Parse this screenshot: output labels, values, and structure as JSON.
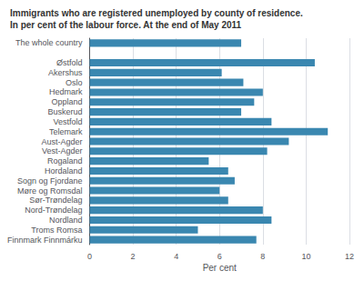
{
  "chart_data": {
    "type": "bar",
    "orientation": "horizontal",
    "title": "Immigrants who are registered unemployed by county of residence.",
    "subtitle": "In per cent of the labour force. At the end of May 2011",
    "categories": [
      "The whole country",
      null,
      "Østfold",
      "Akershus",
      "Oslo",
      "Hedmark",
      "Oppland",
      "Buskerud",
      "Vestfold",
      "Telemark",
      "Aust-Agder",
      "Vest-Agder",
      "Rogaland",
      "Hordaland",
      "Sogn og Fjordane",
      "Møre og Romsdal",
      "Sør-Trøndelag",
      "Nord-Trøndelag",
      "Nordland",
      "Troms Romsa",
      "Finnmark Finnmárku"
    ],
    "values": [
      7.0,
      null,
      10.4,
      6.1,
      7.1,
      8.0,
      7.6,
      7.0,
      8.4,
      11.0,
      9.2,
      8.2,
      5.5,
      6.4,
      6.7,
      6.0,
      6.4,
      8.0,
      8.4,
      5.0,
      7.7
    ],
    "color": "#3a87b0",
    "xlabel": "Per cent",
    "xlim": [
      0,
      12
    ],
    "xticks": [
      0,
      2,
      4,
      6,
      8,
      10,
      12
    ],
    "grid": true
  }
}
